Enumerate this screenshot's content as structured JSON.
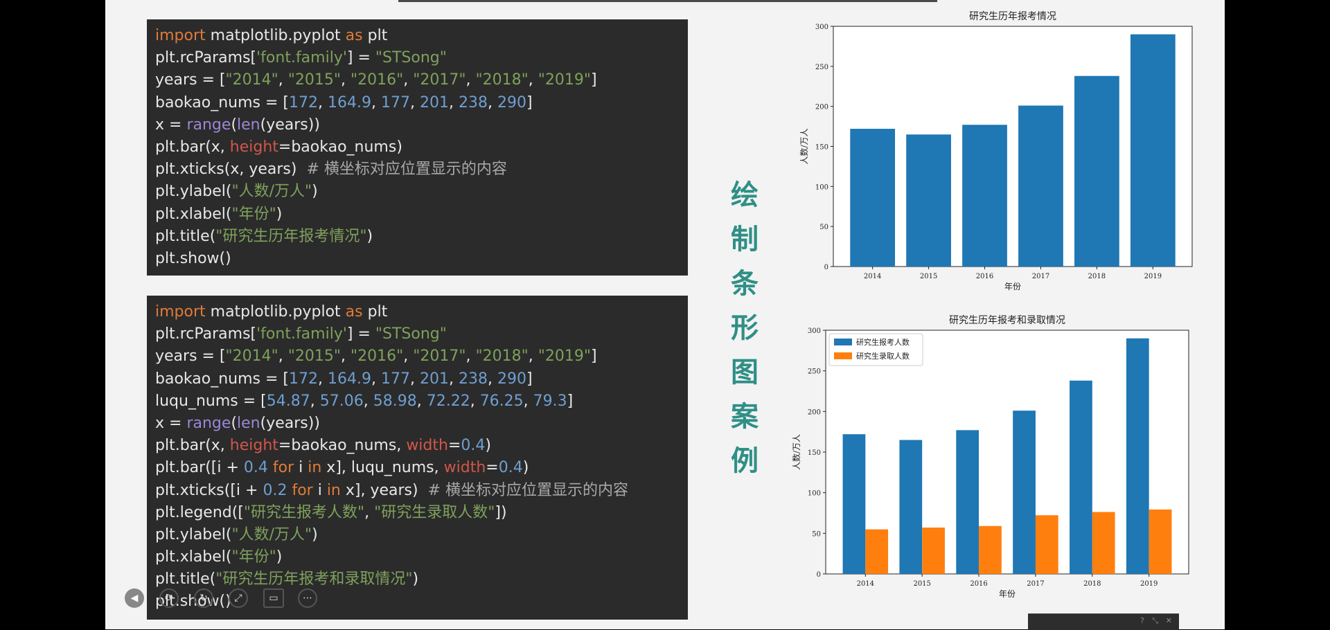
{
  "side_title": [
    "绘",
    "制",
    "条",
    "形",
    "图",
    "案",
    "例"
  ],
  "code1": [
    [
      [
        "kw",
        "import"
      ],
      [
        "t",
        " matplotlib.pyplot "
      ],
      [
        "kw",
        "as"
      ],
      [
        "t",
        " plt"
      ]
    ],
    [
      [
        "t",
        "plt.rcParams["
      ],
      [
        "str",
        "'font.family'"
      ],
      [
        "t",
        "] = "
      ],
      [
        "str",
        "\"STSong\""
      ]
    ],
    [
      [
        "t",
        "years = ["
      ],
      [
        "str",
        "\"2014\""
      ],
      [
        "t",
        ", "
      ],
      [
        "str",
        "\"2015\""
      ],
      [
        "t",
        ", "
      ],
      [
        "str",
        "\"2016\""
      ],
      [
        "t",
        ", "
      ],
      [
        "str",
        "\"2017\""
      ],
      [
        "t",
        ", "
      ],
      [
        "str",
        "\"2018\""
      ],
      [
        "t",
        ", "
      ],
      [
        "str",
        "\"2019\""
      ],
      [
        "t",
        "]"
      ]
    ],
    [
      [
        "t",
        "baokao_nums = ["
      ],
      [
        "num",
        "172"
      ],
      [
        "t",
        ", "
      ],
      [
        "num",
        "164.9"
      ],
      [
        "t",
        ", "
      ],
      [
        "num",
        "177"
      ],
      [
        "t",
        ", "
      ],
      [
        "num",
        "201"
      ],
      [
        "t",
        ", "
      ],
      [
        "num",
        "238"
      ],
      [
        "t",
        ", "
      ],
      [
        "num",
        "290"
      ],
      [
        "t",
        "]"
      ]
    ],
    [
      [
        "t",
        "x = "
      ],
      [
        "fn",
        "range"
      ],
      [
        "t",
        "("
      ],
      [
        "fn",
        "len"
      ],
      [
        "t",
        "(years))"
      ]
    ],
    [
      [
        "t",
        "plt.bar(x, "
      ],
      [
        "param",
        "height"
      ],
      [
        "t",
        "=baokao_nums)"
      ]
    ],
    [
      [
        "t",
        "plt.xticks(x, years)  "
      ],
      [
        "cmt",
        "# 横坐标对应位置显示的内容"
      ]
    ],
    [
      [
        "t",
        "plt.ylabel("
      ],
      [
        "str",
        "\"人数/万人\""
      ],
      [
        "t",
        ")"
      ]
    ],
    [
      [
        "t",
        "plt.xlabel("
      ],
      [
        "str",
        "\"年份\""
      ],
      [
        "t",
        ")"
      ]
    ],
    [
      [
        "t",
        "plt.title("
      ],
      [
        "str",
        "\"研究生历年报考情况\""
      ],
      [
        "t",
        ")"
      ]
    ],
    [
      [
        "t",
        "plt.show()"
      ]
    ]
  ],
  "code2": [
    [
      [
        "kw",
        "import"
      ],
      [
        "t",
        " matplotlib.pyplot "
      ],
      [
        "kw",
        "as"
      ],
      [
        "t",
        " plt"
      ]
    ],
    [
      [
        "t",
        "plt.rcParams["
      ],
      [
        "str",
        "'font.family'"
      ],
      [
        "t",
        "] = "
      ],
      [
        "str",
        "\"STSong\""
      ]
    ],
    [
      [
        "t",
        "years = ["
      ],
      [
        "str",
        "\"2014\""
      ],
      [
        "t",
        ", "
      ],
      [
        "str",
        "\"2015\""
      ],
      [
        "t",
        ", "
      ],
      [
        "str",
        "\"2016\""
      ],
      [
        "t",
        ", "
      ],
      [
        "str",
        "\"2017\""
      ],
      [
        "t",
        ", "
      ],
      [
        "str",
        "\"2018\""
      ],
      [
        "t",
        ", "
      ],
      [
        "str",
        "\"2019\""
      ],
      [
        "t",
        "]"
      ]
    ],
    [
      [
        "t",
        "baokao_nums = ["
      ],
      [
        "num",
        "172"
      ],
      [
        "t",
        ", "
      ],
      [
        "num",
        "164.9"
      ],
      [
        "t",
        ", "
      ],
      [
        "num",
        "177"
      ],
      [
        "t",
        ", "
      ],
      [
        "num",
        "201"
      ],
      [
        "t",
        ", "
      ],
      [
        "num",
        "238"
      ],
      [
        "t",
        ", "
      ],
      [
        "num",
        "290"
      ],
      [
        "t",
        "]"
      ]
    ],
    [
      [
        "t",
        "luqu_nums = ["
      ],
      [
        "num",
        "54.87"
      ],
      [
        "t",
        ", "
      ],
      [
        "num",
        "57.06"
      ],
      [
        "t",
        ", "
      ],
      [
        "num",
        "58.98"
      ],
      [
        "t",
        ", "
      ],
      [
        "num",
        "72.22"
      ],
      [
        "t",
        ", "
      ],
      [
        "num",
        "76.25"
      ],
      [
        "t",
        ", "
      ],
      [
        "num",
        "79.3"
      ],
      [
        "t",
        "]"
      ]
    ],
    [
      [
        "t",
        "x = "
      ],
      [
        "fn",
        "range"
      ],
      [
        "t",
        "("
      ],
      [
        "fn",
        "len"
      ],
      [
        "t",
        "(years))"
      ]
    ],
    [
      [
        "t",
        "plt.bar(x, "
      ],
      [
        "param",
        "height"
      ],
      [
        "t",
        "=baokao_nums, "
      ],
      [
        "param",
        "width"
      ],
      [
        "t",
        "="
      ],
      [
        "num",
        "0.4"
      ],
      [
        "t",
        ")"
      ]
    ],
    [
      [
        "t",
        "plt.bar([i + "
      ],
      [
        "num",
        "0.4"
      ],
      [
        "t",
        " "
      ],
      [
        "kw",
        "for"
      ],
      [
        "t",
        " i "
      ],
      [
        "kw",
        "in"
      ],
      [
        "t",
        " x], luqu_nums, "
      ],
      [
        "param",
        "width"
      ],
      [
        "t",
        "="
      ],
      [
        "num",
        "0.4"
      ],
      [
        "t",
        ")"
      ]
    ],
    [
      [
        "t",
        "plt.xticks([i + "
      ],
      [
        "num",
        "0.2"
      ],
      [
        "t",
        " "
      ],
      [
        "kw",
        "for"
      ],
      [
        "t",
        " i "
      ],
      [
        "kw",
        "in"
      ],
      [
        "t",
        " x], years)  "
      ],
      [
        "cmt",
        "# 横坐标对应位置显示的内容"
      ]
    ],
    [
      [
        "t",
        "plt.legend(["
      ],
      [
        "str",
        "\"研究生报考人数\""
      ],
      [
        "t",
        ", "
      ],
      [
        "str",
        "\"研究生录取人数\""
      ],
      [
        "t",
        "])"
      ]
    ],
    [
      [
        "t",
        "plt.ylabel("
      ],
      [
        "str",
        "\"人数/万人\""
      ],
      [
        "t",
        ")"
      ]
    ],
    [
      [
        "t",
        "plt.xlabel("
      ],
      [
        "str",
        "\"年份\""
      ],
      [
        "t",
        ")"
      ]
    ],
    [
      [
        "t",
        "plt.title("
      ],
      [
        "str",
        "\"研究生历年报考和录取情况\""
      ],
      [
        "t",
        ")"
      ]
    ],
    [
      [
        "t",
        "plt.show()"
      ]
    ]
  ],
  "chart_data": [
    {
      "type": "bar",
      "title": "研究生历年报考情况",
      "xlabel": "年份",
      "ylabel": "人数/万人",
      "categories": [
        "2014",
        "2015",
        "2016",
        "2017",
        "2018",
        "2019"
      ],
      "ylim": [
        0,
        300
      ],
      "yticks": [
        0,
        50,
        100,
        150,
        200,
        250,
        300
      ],
      "series": [
        {
          "values": [
            172,
            164.9,
            177,
            201,
            238,
            290
          ],
          "color": "#1f77b4"
        }
      ]
    },
    {
      "type": "bar",
      "title": "研究生历年报考和录取情况",
      "xlabel": "年份",
      "ylabel": "人数/万人",
      "categories": [
        "2014",
        "2015",
        "2016",
        "2017",
        "2018",
        "2019"
      ],
      "ylim": [
        0,
        300
      ],
      "yticks": [
        0,
        50,
        100,
        150,
        200,
        250,
        300
      ],
      "legend_position": "top-left",
      "series": [
        {
          "name": "研究生报考人数",
          "values": [
            172,
            164.9,
            177,
            201,
            238,
            290
          ],
          "color": "#1f77b4"
        },
        {
          "name": "研究生录取人数",
          "values": [
            54.87,
            57.06,
            58.98,
            72.22,
            76.25,
            79.3
          ],
          "color": "#ff7f0e"
        }
      ]
    }
  ],
  "player_controls": [
    "back-icon",
    "loop-icon",
    "redo-icon",
    "expand-icon",
    "camera-icon",
    "more-icon"
  ]
}
